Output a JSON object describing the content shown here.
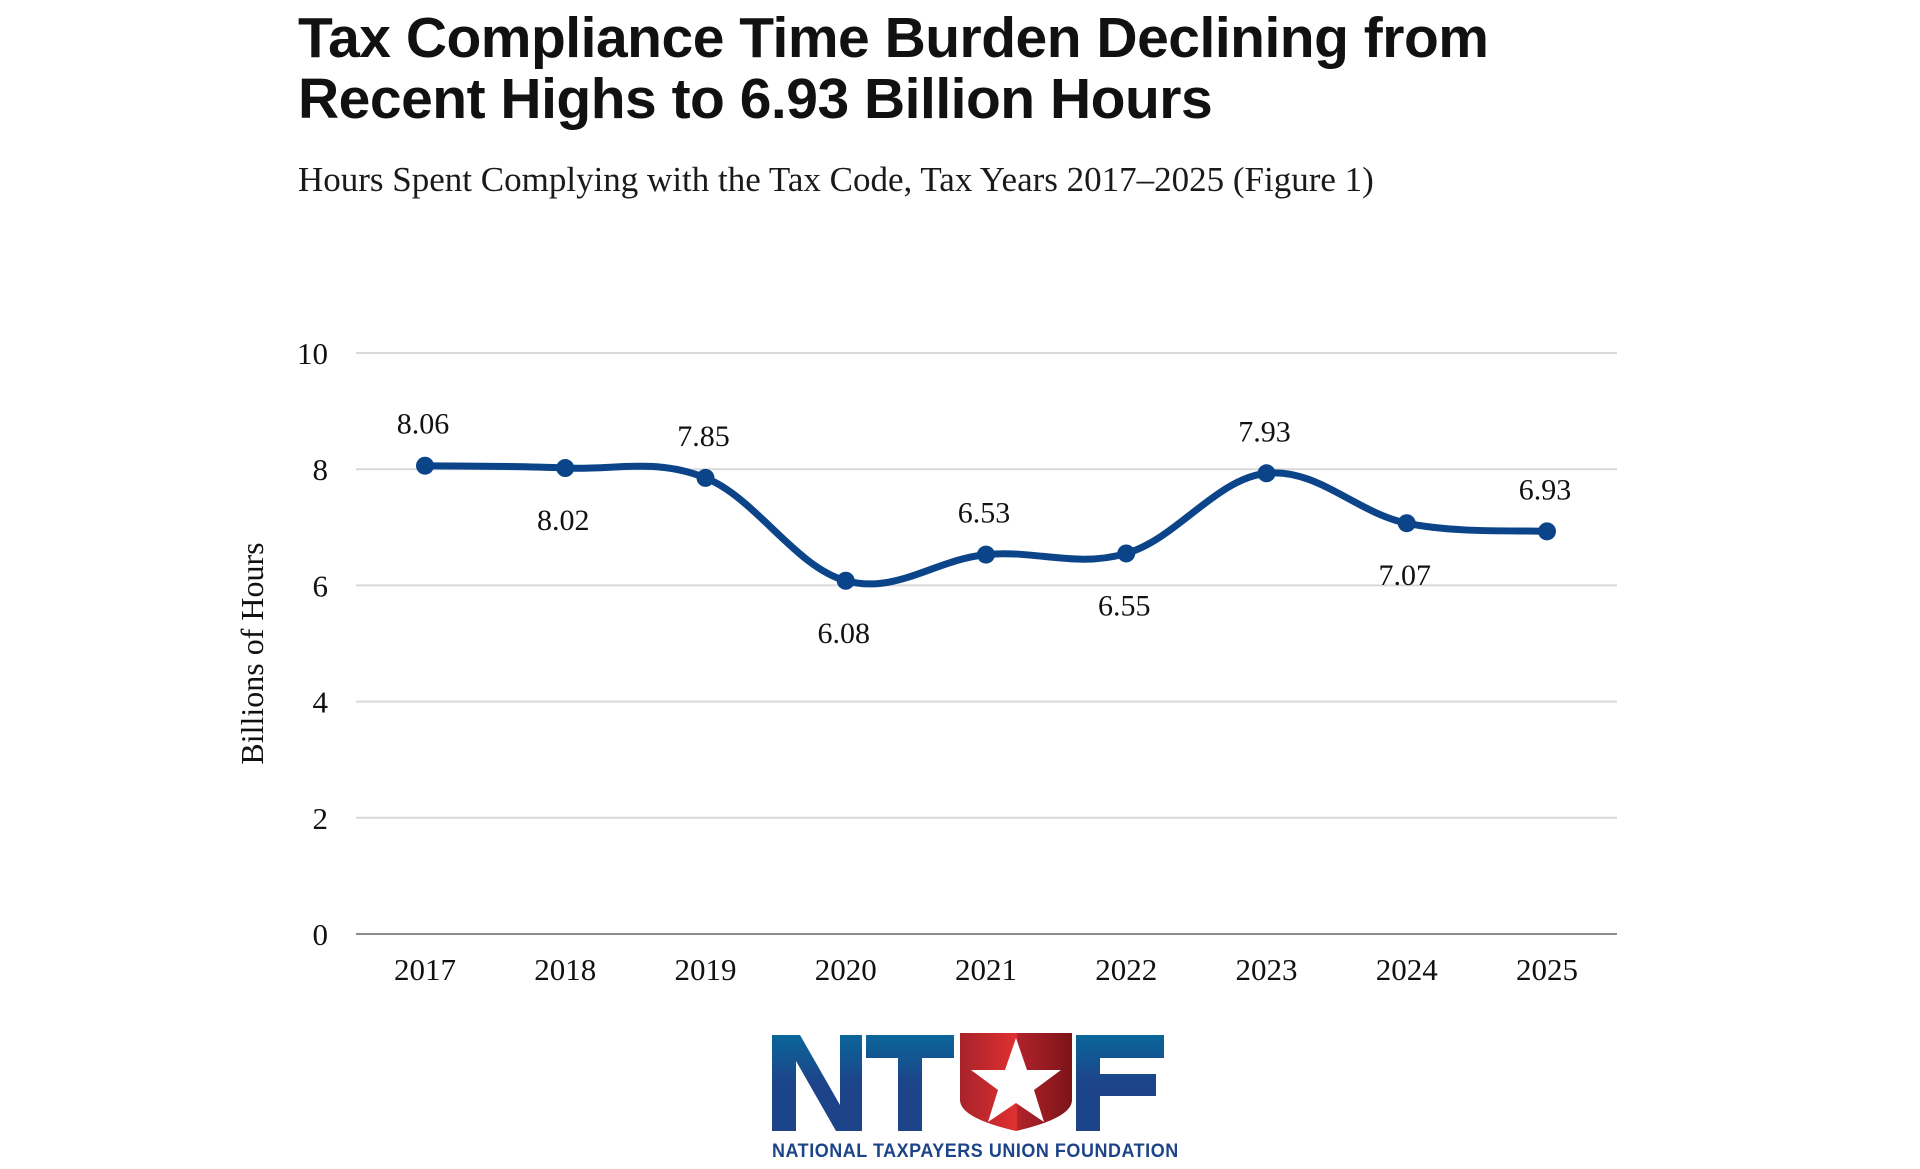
{
  "header": {
    "title": "Tax Compliance Time Burden Declining from Recent Highs to 6.93 Billion Hours",
    "subtitle": "Hours Spent Complying with the Tax Code, Tax Years 2017–2025 (Figure 1)"
  },
  "chart_data": {
    "type": "line",
    "title": "Tax Compliance Time Burden Declining from Recent Highs to 6.93 Billion Hours",
    "subtitle": "Hours Spent Complying with the Tax Code, Tax Years 2017–2025 (Figure 1)",
    "xlabel": "",
    "ylabel": "Billions of Hours",
    "categories": [
      "2017",
      "2018",
      "2019",
      "2020",
      "2021",
      "2022",
      "2023",
      "2024",
      "2025"
    ],
    "series": [
      {
        "name": "Billions of Hours",
        "values": [
          8.06,
          8.02,
          7.85,
          6.08,
          6.53,
          6.55,
          7.93,
          7.07,
          6.93
        ],
        "data_labels": [
          "8.06",
          "8.02",
          "7.85",
          "6.08",
          "6.53",
          "6.55",
          "7.93",
          "7.07",
          "6.93"
        ],
        "label_positions": [
          "above",
          "below",
          "above",
          "below",
          "above",
          "below",
          "above",
          "below",
          "above"
        ],
        "color": "#0b4489",
        "smooth": true,
        "markers": true
      }
    ],
    "ylim": [
      0,
      10
    ],
    "yticks": [
      0,
      2,
      4,
      6,
      8,
      10
    ],
    "ytick_labels": [
      "0",
      "2",
      "4",
      "6",
      "8",
      "10"
    ],
    "grid": true,
    "gridline_color": "#d9d9d9",
    "legend": "none"
  },
  "logo": {
    "letters": [
      "N",
      "T",
      "U",
      "F"
    ],
    "tagline": "NATIONAL TAXPAYERS UNION FOUNDATION",
    "primary_color": "#1d4489",
    "accent_color": "#c8252c"
  }
}
